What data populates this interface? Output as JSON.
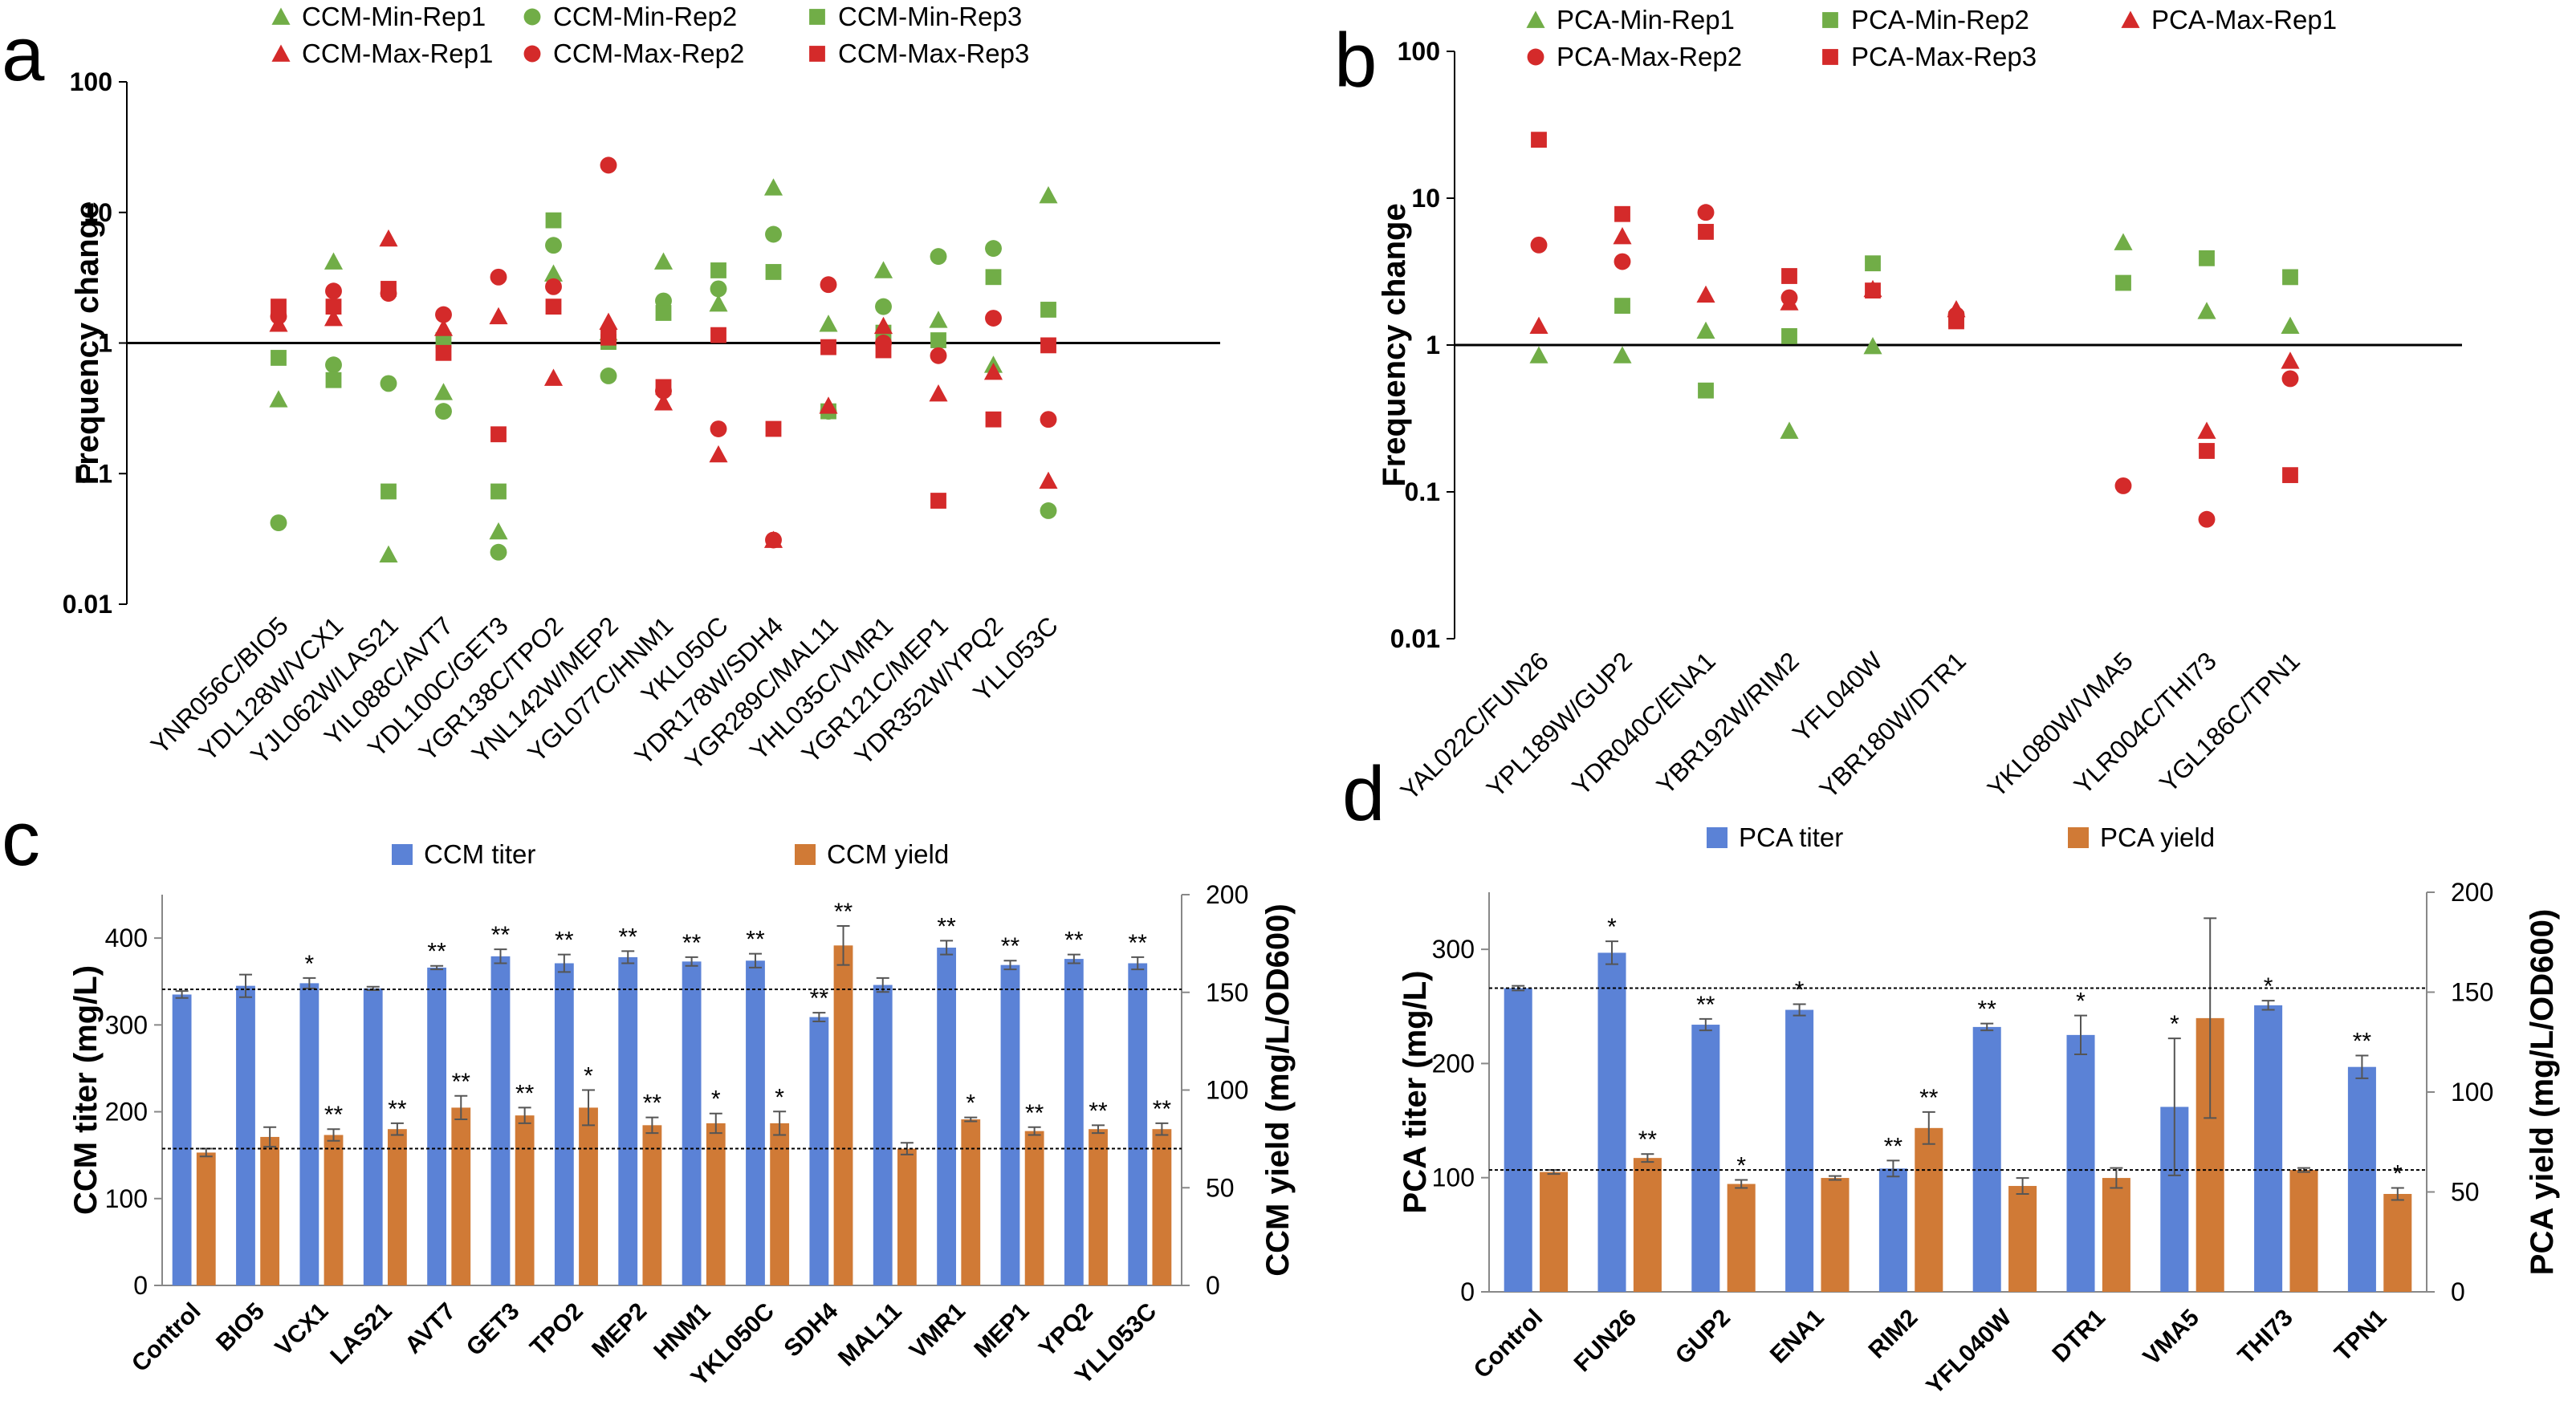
{
  "panels": {
    "a": "a",
    "b": "b",
    "c": "c",
    "d": "d"
  },
  "colors": {
    "min": "#71AD47",
    "max": "#D42A2A",
    "titer": "#5B82D6",
    "yield": "#D07A36",
    "axis": "#000000"
  },
  "chart_data": [
    {
      "panel": "a",
      "type": "scatter",
      "scale": "log",
      "ylabel": "Frequency change",
      "ylim": [
        0.01,
        100
      ],
      "yticks": [
        "0.01",
        "0.1",
        "1",
        "10",
        "100"
      ],
      "legend_position": "top",
      "categories": [
        "YNR056C/BIO5",
        "YDL128W/VCX1",
        "YJL062W/LAS21",
        "YIL088C/AVT7",
        "YDL100C/GET3",
        "YGR138C/TPO2",
        "YNL142W/MEP2",
        "YGL077C/HNM1",
        "YKL050C",
        "YDR178W/SDH4",
        "YGR289C/MAL11",
        "YHL035C/VMR1",
        "YGR121C/MEP1",
        "YDR352W/YPQ2",
        "YLL053C"
      ],
      "series": [
        {
          "name": "CCM-Min-Rep1",
          "group": "min",
          "marker": "triangle",
          "values": [
            0.37,
            4.2,
            0.024,
            0.42,
            0.036,
            3.4,
            1.2,
            4.2,
            2.0,
            15.5,
            1.4,
            3.6,
            1.5,
            0.68,
            13.5
          ]
        },
        {
          "name": "CCM-Min-Rep2",
          "group": "min",
          "marker": "circle",
          "values": [
            0.042,
            0.68,
            0.49,
            0.3,
            0.025,
            5.6,
            0.56,
            2.1,
            2.6,
            6.8,
            0.3,
            1.9,
            4.6,
            5.3,
            0.052
          ]
        },
        {
          "name": "CCM-Min-Rep3",
          "group": "min",
          "marker": "square",
          "values": [
            0.77,
            0.52,
            0.073,
            1.05,
            0.073,
            8.7,
            1.02,
            1.7,
            3.6,
            3.5,
            0.3,
            1.2,
            1.05,
            3.2,
            1.8
          ]
        },
        {
          "name": "CCM-Max-Rep1",
          "group": "max",
          "marker": "triangle",
          "values": [
            1.4,
            1.55,
            6.3,
            1.3,
            1.6,
            0.54,
            1.45,
            0.35,
            0.14,
            0.031,
            0.33,
            1.35,
            0.41,
            0.6,
            0.088
          ]
        },
        {
          "name": "CCM-Max-Rep2",
          "group": "max",
          "marker": "circle",
          "values": [
            1.6,
            2.5,
            2.4,
            1.65,
            3.2,
            2.7,
            23.0,
            0.43,
            0.22,
            0.031,
            2.8,
            1.0,
            0.8,
            1.55,
            0.26
          ]
        },
        {
          "name": "CCM-Max-Rep3",
          "group": "max",
          "marker": "square",
          "values": [
            1.9,
            1.9,
            2.6,
            0.84,
            0.2,
            1.9,
            1.1,
            0.46,
            1.15,
            0.22,
            0.93,
            0.88,
            0.062,
            0.26,
            0.96
          ]
        }
      ]
    },
    {
      "panel": "b",
      "type": "scatter",
      "scale": "log",
      "ylabel": "Frequency change",
      "ylim": [
        0.01,
        100
      ],
      "yticks": [
        "0.01",
        "0.1",
        "1",
        "10",
        "100"
      ],
      "legend_position": "top",
      "categories": [
        "YAL022C/FUN26",
        "YPL189W/GUP2",
        "YDR040C/ENA1",
        "YBR192W/RIM2",
        "YFL040W",
        "YBR180W/DTR1",
        "YKL080W/VMA5",
        "YLR004C/THI73",
        "YGL186C/TPN1"
      ],
      "category_slots": [
        0,
        1,
        2,
        3,
        4,
        5,
        7,
        8,
        9
      ],
      "series": [
        {
          "name": "PCA-Min-Rep1",
          "group": "min",
          "marker": "triangle",
          "values": [
            0.85,
            0.85,
            1.25,
            0.26,
            0.98,
            null,
            5.0,
            1.7,
            1.35
          ]
        },
        {
          "name": "PCA-Min-Rep2",
          "group": "min",
          "marker": "square",
          "values": [
            null,
            1.85,
            0.49,
            1.15,
            3.6,
            1.5,
            2.65,
            3.9,
            2.9
          ]
        },
        {
          "name": "PCA-Max-Rep1",
          "group": "max",
          "marker": "triangle",
          "values": [
            1.35,
            5.5,
            2.2,
            1.95,
            2.4,
            1.75,
            null,
            0.26,
            0.78
          ]
        },
        {
          "name": "PCA-Max-Rep2",
          "group": "max",
          "marker": "circle",
          "values": [
            4.8,
            3.7,
            8.0,
            2.1,
            null,
            1.6,
            0.11,
            0.065,
            0.59
          ]
        },
        {
          "name": "PCA-Max-Rep3",
          "group": "max",
          "marker": "square",
          "values": [
            25.0,
            7.8,
            5.9,
            2.95,
            2.35,
            1.45,
            null,
            0.19,
            0.13
          ]
        }
      ]
    },
    {
      "panel": "c",
      "type": "bar",
      "legend_position": "top",
      "categories": [
        "Control",
        "BIO5",
        "VCX1",
        "LAS21",
        "AVT7",
        "GET3",
        "TPO2",
        "MEP2",
        "HNM1",
        "YKL050C",
        "SDH4",
        "MAL11",
        "VMR1",
        "MEP1",
        "YPQ2",
        "YLL053C"
      ],
      "y_left": {
        "label": "CCM titer (mg/L)",
        "lim": [
          0,
          450
        ],
        "ticks": [
          "0",
          "100",
          "200",
          "300",
          "400"
        ]
      },
      "y_right": {
        "label": "CCM yield (mg/L/OD600)",
        "lim": [
          0,
          200
        ],
        "ticks": [
          "0",
          "50",
          "100",
          "150",
          "200"
        ]
      },
      "reference_lines": {
        "titer": 341,
        "yield": 70
      },
      "series": [
        {
          "name": "CCM titer",
          "axis": "left",
          "values": [
            335,
            345,
            348,
            342,
            366,
            379,
            371,
            378,
            373,
            374,
            309,
            346,
            389,
            369,
            376,
            371
          ],
          "errors": [
            4,
            13,
            6,
            2,
            2,
            8,
            10,
            7,
            5,
            8,
            5,
            8,
            8,
            5,
            5,
            7
          ],
          "sig": [
            "",
            "",
            "*",
            "",
            "**",
            "**",
            "**",
            "**",
            "**",
            "**",
            "**",
            "",
            "**",
            "**",
            "**",
            "**"
          ]
        },
        {
          "name": "CCM yield",
          "axis": "right",
          "values": [
            68,
            76,
            77,
            80,
            91,
            87,
            91,
            82,
            83,
            83,
            174,
            70,
            85,
            79,
            80,
            80
          ],
          "errors": [
            2,
            5,
            3,
            3,
            6,
            4,
            9,
            4,
            5,
            6,
            10,
            3,
            1,
            2,
            2,
            3
          ],
          "sig": [
            "",
            "",
            "**",
            "**",
            "**",
            "**",
            "*",
            "**",
            "*",
            "*",
            "**",
            "",
            "*",
            "**",
            "**",
            "**"
          ]
        }
      ]
    },
    {
      "panel": "d",
      "type": "bar",
      "legend_position": "top",
      "categories": [
        "Control",
        "FUN26",
        "GUP2",
        "ENA1",
        "RIM2",
        "YFL040W",
        "DTR1",
        "VMA5",
        "THI73",
        "TPN1"
      ],
      "y_left": {
        "label": "PCA titer (mg/L)",
        "lim": [
          0,
          350
        ],
        "ticks": [
          "0",
          "100",
          "200",
          "300"
        ]
      },
      "y_right": {
        "label": "PCA yield (mg/L/OD600)",
        "lim": [
          0,
          200
        ],
        "ticks": [
          "0",
          "50",
          "100",
          "150",
          "200"
        ]
      },
      "reference_lines": {
        "titer": 266,
        "yield": 61
      },
      "series": [
        {
          "name": "PCA titer",
          "axis": "left",
          "values": [
            266,
            297,
            234,
            247,
            108,
            232,
            225,
            162,
            251,
            197
          ],
          "errors": [
            2,
            10,
            5,
            5,
            7,
            3,
            17,
            60,
            4,
            10
          ],
          "sig": [
            "",
            "*",
            "**",
            "*",
            "**",
            "**",
            "*",
            "*",
            "*",
            "**"
          ]
        },
        {
          "name": "PCA yield",
          "axis": "right",
          "values": [
            60,
            67,
            54,
            57,
            82,
            53,
            57,
            137,
            61,
            49
          ],
          "errors": [
            1,
            2,
            2,
            1,
            8,
            4,
            5,
            50,
            1,
            3
          ],
          "sig": [
            "",
            "**",
            "*",
            "",
            "**",
            "",
            "",
            "",
            "",
            "*"
          ]
        }
      ]
    }
  ]
}
